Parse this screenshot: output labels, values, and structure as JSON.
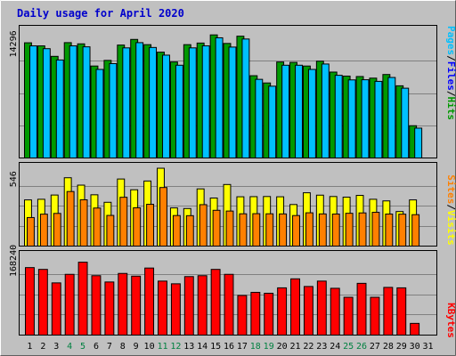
{
  "colors": {
    "background": "#C0C0C0",
    "plot_background": "#C0C0C0",
    "title": "#0000CC",
    "hits": "#009900",
    "files": "#0000FF",
    "pages": "#00C0FF",
    "visits": "#FFFF00",
    "sites": "#FF8000",
    "kbytes": "#FF0000",
    "weekend_label": "#008040"
  },
  "chart_data": [
    {
      "type": "bar",
      "title": "Daily usage for April 2020",
      "categories": [
        "1",
        "2",
        "3",
        "4",
        "5",
        "6",
        "7",
        "8",
        "9",
        "10",
        "11",
        "12",
        "13",
        "14",
        "15",
        "16",
        "17",
        "18",
        "19",
        "20",
        "21",
        "22",
        "23",
        "24",
        "25",
        "26",
        "27",
        "28",
        "29",
        "30",
        "31"
      ],
      "weekend_days": [
        "4",
        "5",
        "11",
        "12",
        "18",
        "19",
        "25",
        "26"
      ],
      "y_tick_label": "14296",
      "ylim": [
        0,
        16000
      ],
      "series": [
        {
          "name": "Hits",
          "values": [
            14280,
            13900,
            12600,
            14300,
            14150,
            11400,
            12100,
            14000,
            14700,
            14050,
            13120,
            11900,
            14050,
            14250,
            15260,
            14200,
            15100,
            10200,
            9300,
            11900,
            11850,
            11400,
            12000,
            10650,
            10150,
            10100,
            9900,
            10350,
            8950,
            4000,
            0
          ]
        },
        {
          "name": "Files",
          "values": [
            0,
            0,
            0,
            0,
            0,
            0,
            0,
            0,
            0,
            0,
            0,
            0,
            0,
            0,
            0,
            0,
            0,
            0,
            0,
            0,
            0,
            0,
            0,
            0,
            0,
            0,
            0,
            0,
            0,
            0,
            0
          ]
        },
        {
          "name": "Pages",
          "values": [
            13900,
            13550,
            12150,
            13900,
            13780,
            10980,
            11700,
            13650,
            14300,
            13700,
            12750,
            11500,
            13650,
            13900,
            14900,
            13750,
            14750,
            9750,
            8900,
            11500,
            11500,
            10980,
            11650,
            10250,
            9680,
            9700,
            9500,
            9980,
            8650,
            3700,
            0
          ]
        }
      ]
    },
    {
      "type": "bar",
      "categories": [
        "1",
        "2",
        "3",
        "4",
        "5",
        "6",
        "7",
        "8",
        "9",
        "10",
        "11",
        "12",
        "13",
        "14",
        "15",
        "16",
        "17",
        "18",
        "19",
        "20",
        "21",
        "22",
        "23",
        "24",
        "25",
        "26",
        "27",
        "28",
        "29",
        "30",
        "31"
      ],
      "y_tick_label": "546",
      "ylim": [
        0,
        640
      ],
      "series": [
        {
          "name": "Visits",
          "values": [
            369,
            374,
            408,
            546,
            487,
            410,
            350,
            536,
            450,
            520,
            622,
            305,
            300,
            457,
            384,
            492,
            394,
            395,
            396,
            394,
            332,
            426,
            407,
            396,
            391,
            405,
            374,
            361,
            276,
            369,
            0
          ]
        },
        {
          "name": "Sites",
          "values": [
            228,
            255,
            261,
            436,
            370,
            304,
            245,
            390,
            306,
            334,
            468,
            244,
            243,
            331,
            286,
            280,
            258,
            259,
            258,
            257,
            244,
            266,
            257,
            256,
            262,
            265,
            270,
            256,
            255,
            251,
            0
          ]
        }
      ]
    },
    {
      "type": "bar",
      "categories": [
        "1",
        "2",
        "3",
        "4",
        "5",
        "6",
        "7",
        "8",
        "9",
        "10",
        "11",
        "12",
        "13",
        "14",
        "15",
        "16",
        "17",
        "18",
        "19",
        "20",
        "21",
        "22",
        "23",
        "24",
        "25",
        "26",
        "27",
        "28",
        "29",
        "30",
        "31"
      ],
      "y_tick_label": "168240",
      "ylim": [
        0,
        180000
      ],
      "series": [
        {
          "name": "KBytes",
          "values": [
            150000,
            146000,
            116000,
            135000,
            162000,
            132000,
            118000,
            137000,
            131000,
            149000,
            120000,
            114000,
            130000,
            132000,
            146000,
            135000,
            88000,
            95000,
            93000,
            105000,
            125000,
            108000,
            120000,
            104000,
            84000,
            115000,
            84000,
            106000,
            105000,
            26000,
            0
          ]
        }
      ]
    }
  ],
  "legends": {
    "top": [
      "Pages",
      "/",
      "Files",
      "/",
      "Hits"
    ],
    "middle": [
      "Sites",
      "/",
      "Visits"
    ],
    "bottom": [
      "KBytes"
    ]
  }
}
